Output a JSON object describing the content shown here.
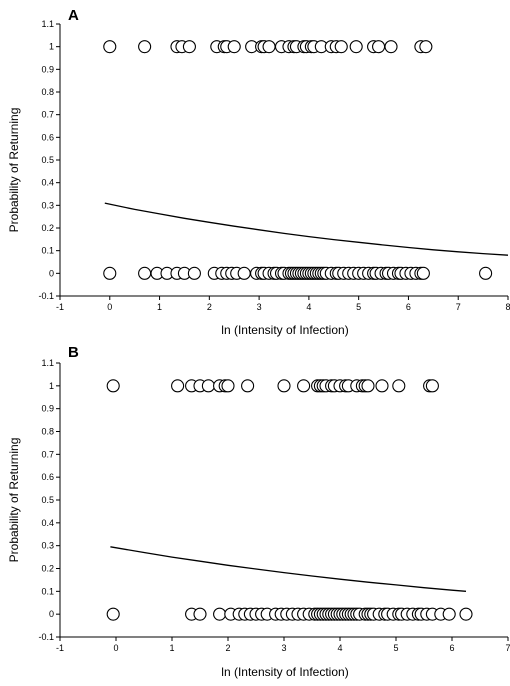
{
  "chart_data": [
    {
      "type": "scatter",
      "panel_label": "A",
      "xlabel": "ln (Intensity of Infection)",
      "ylabel": "Probability of Returning",
      "xlim": [
        -1,
        8
      ],
      "ylim": [
        -0.1,
        1.1
      ],
      "xticks": [
        -1,
        0,
        1,
        2,
        3,
        4,
        5,
        6,
        7,
        8
      ],
      "yticks": [
        -0.1,
        0,
        0.1,
        0.2,
        0.3,
        0.4,
        0.5,
        0.6,
        0.7,
        0.8,
        0.9,
        1,
        1.1
      ],
      "points_returned": [
        0.0,
        0.7,
        1.35,
        1.45,
        1.6,
        2.15,
        2.3,
        2.35,
        2.5,
        2.85,
        3.05,
        3.1,
        3.2,
        3.45,
        3.6,
        3.7,
        3.75,
        3.9,
        3.95,
        4.05,
        4.1,
        4.25,
        4.45,
        4.55,
        4.65,
        4.95,
        5.3,
        5.4,
        5.65,
        6.25,
        6.35
      ],
      "points_not_returned": [
        0.0,
        0.7,
        0.95,
        1.15,
        1.35,
        1.5,
        1.7,
        2.1,
        2.25,
        2.35,
        2.45,
        2.55,
        2.7,
        2.95,
        3.05,
        3.1,
        3.2,
        3.3,
        3.35,
        3.45,
        3.5,
        3.6,
        3.65,
        3.7,
        3.75,
        3.8,
        3.85,
        3.9,
        3.95,
        4.0,
        4.05,
        4.1,
        4.15,
        4.2,
        4.25,
        4.3,
        4.35,
        4.45,
        4.55,
        4.6,
        4.7,
        4.8,
        4.9,
        5.0,
        5.1,
        5.2,
        5.3,
        5.35,
        5.45,
        5.55,
        5.6,
        5.7,
        5.8,
        5.85,
        5.95,
        6.05,
        6.15,
        6.25,
        6.3,
        7.55
      ],
      "fit_curve": {
        "x": [
          -0.1,
          0.5,
          1.0,
          1.5,
          2.0,
          2.5,
          3.0,
          3.5,
          4.0,
          4.5,
          5.0,
          5.5,
          6.0,
          6.5,
          7.0,
          7.5,
          8.0
        ],
        "y": [
          0.31,
          0.282,
          0.262,
          0.243,
          0.225,
          0.208,
          0.192,
          0.176,
          0.162,
          0.149,
          0.137,
          0.125,
          0.114,
          0.104,
          0.095,
          0.087,
          0.08
        ]
      }
    },
    {
      "type": "scatter",
      "panel_label": "B",
      "xlabel": "ln (Intensity of Infection)",
      "ylabel": "Probability of Returning",
      "xlim": [
        -1,
        7
      ],
      "ylim": [
        -0.1,
        1.1
      ],
      "xticks": [
        -1,
        0,
        1,
        2,
        3,
        4,
        5,
        6,
        7
      ],
      "yticks": [
        -0.1,
        0,
        0.1,
        0.2,
        0.3,
        0.4,
        0.5,
        0.6,
        0.7,
        0.8,
        0.9,
        1,
        1.1
      ],
      "points_returned": [
        -0.05,
        1.1,
        1.35,
        1.5,
        1.65,
        1.85,
        1.95,
        2.0,
        2.35,
        3.0,
        3.35,
        3.6,
        3.65,
        3.7,
        3.75,
        3.85,
        3.9,
        4.0,
        4.1,
        4.15,
        4.3,
        4.4,
        4.45,
        4.5,
        4.75,
        5.05,
        5.6,
        5.65
      ],
      "points_not_returned": [
        -0.05,
        1.35,
        1.5,
        1.85,
        2.05,
        2.2,
        2.3,
        2.4,
        2.5,
        2.6,
        2.7,
        2.85,
        2.95,
        3.05,
        3.15,
        3.25,
        3.35,
        3.45,
        3.55,
        3.6,
        3.65,
        3.7,
        3.75,
        3.8,
        3.85,
        3.9,
        3.95,
        4.0,
        4.05,
        4.1,
        4.15,
        4.2,
        4.25,
        4.3,
        4.35,
        4.45,
        4.5,
        4.55,
        4.6,
        4.7,
        4.8,
        4.85,
        4.95,
        5.05,
        5.1,
        5.2,
        5.3,
        5.4,
        5.45,
        5.55,
        5.65,
        5.8,
        5.95,
        6.25
      ],
      "fit_curve": {
        "x": [
          -0.1,
          0.5,
          1.0,
          1.5,
          2.0,
          2.5,
          3.0,
          3.5,
          4.0,
          4.5,
          5.0,
          5.5,
          6.0,
          6.25
        ],
        "y": [
          0.295,
          0.27,
          0.25,
          0.232,
          0.214,
          0.198,
          0.182,
          0.167,
          0.153,
          0.14,
          0.128,
          0.116,
          0.105,
          0.1
        ]
      }
    }
  ]
}
